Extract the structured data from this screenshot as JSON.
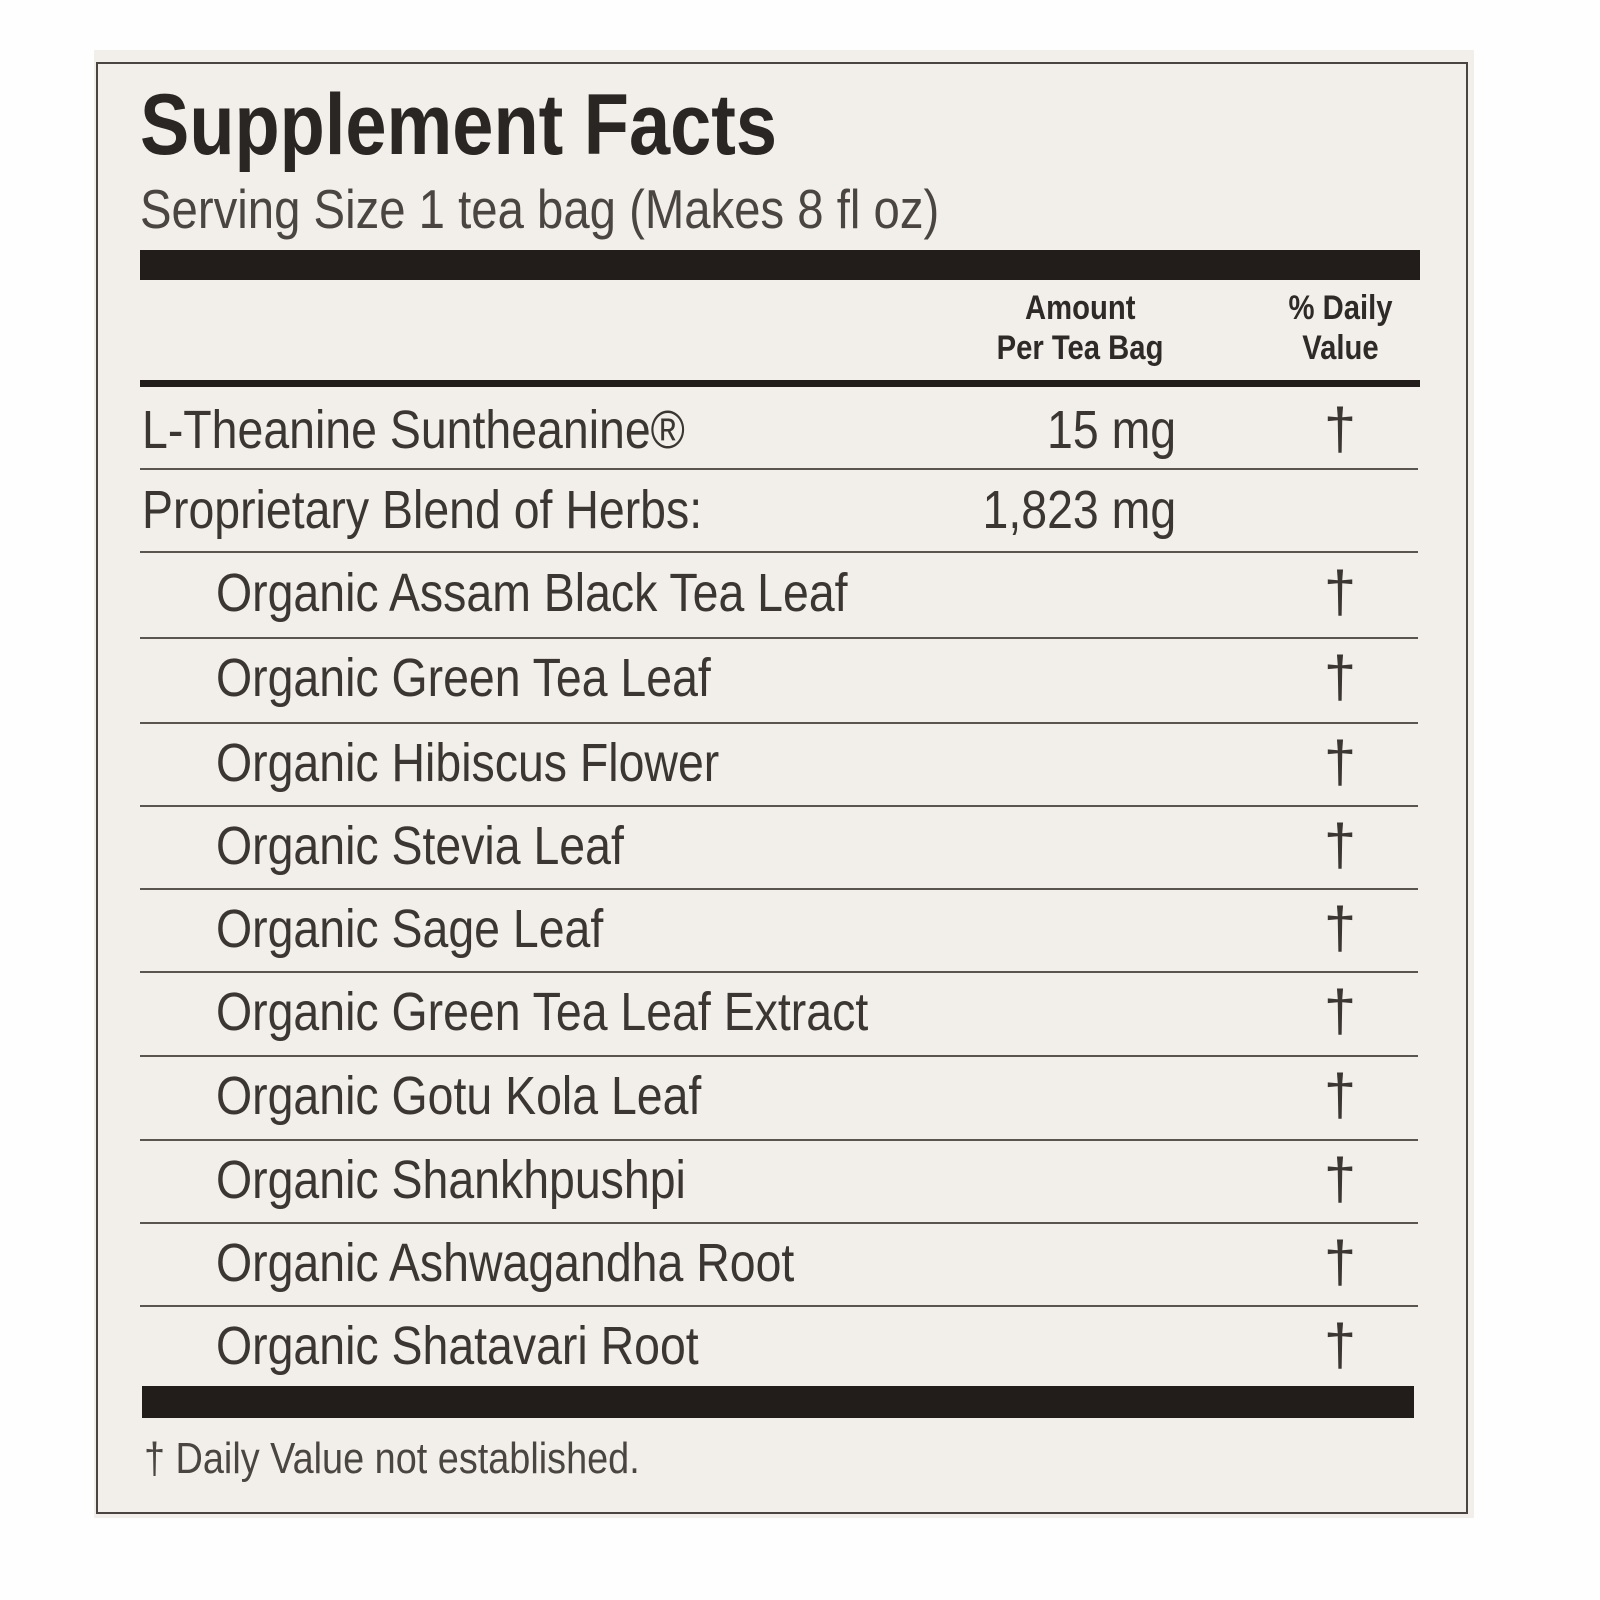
{
  "label": {
    "title": "Supplement Facts",
    "serving_size": "Serving Size 1 tea bag (Makes 8 fl oz)",
    "columns": {
      "amount": [
        "Amount",
        "Per Tea Bag"
      ],
      "daily_value": [
        "% Daily",
        "Value"
      ]
    },
    "rows": [
      {
        "name": "L-Theanine Suntheanine®",
        "amount": "15 mg",
        "dv": "†",
        "indent": false
      },
      {
        "name": "Proprietary Blend of Herbs:",
        "amount": "1,823 mg",
        "dv": "",
        "indent": false
      },
      {
        "name": "Organic Assam Black Tea Leaf",
        "amount": "",
        "dv": "†",
        "indent": true
      },
      {
        "name": "Organic Green Tea Leaf",
        "amount": "",
        "dv": "†",
        "indent": true
      },
      {
        "name": "Organic Hibiscus Flower",
        "amount": "",
        "dv": "†",
        "indent": true
      },
      {
        "name": "Organic Stevia Leaf",
        "amount": "",
        "dv": "†",
        "indent": true
      },
      {
        "name": "Organic Sage Leaf",
        "amount": "",
        "dv": "†",
        "indent": true
      },
      {
        "name": "Organic Green Tea Leaf Extract",
        "amount": "",
        "dv": "†",
        "indent": true
      },
      {
        "name": "Organic Gotu Kola Leaf",
        "amount": "",
        "dv": "†",
        "indent": true
      },
      {
        "name": "Organic Shankhpushpi",
        "amount": "",
        "dv": "†",
        "indent": true
      },
      {
        "name": "Organic Ashwagandha Root",
        "amount": "",
        "dv": "†",
        "indent": true
      },
      {
        "name": "Organic Shatavari Root",
        "amount": "",
        "dv": "†",
        "indent": true
      }
    ],
    "footnote": "† Daily Value not established."
  },
  "colors": {
    "ink": "#221d1a",
    "paper": "#f2efeb"
  }
}
